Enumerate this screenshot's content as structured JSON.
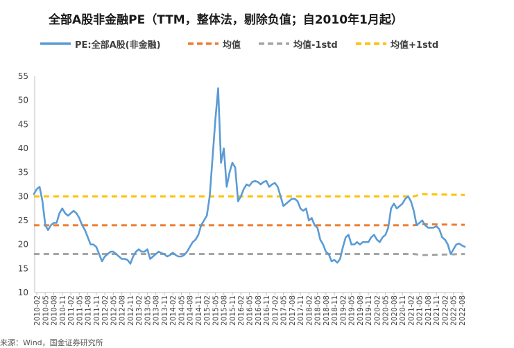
{
  "chart_data": {
    "type": "line",
    "title": "全部A股非金融PE（TTM，整体法，剔除负值；自2010年1月起）",
    "ylim": [
      10,
      55
    ],
    "yticks": [
      10,
      15,
      20,
      25,
      30,
      35,
      40,
      45,
      50,
      55
    ],
    "x_tick_labels": [
      "2010-02",
      "2010-05",
      "2010-08",
      "2010-11",
      "2011-02",
      "2011-05",
      "2011-08",
      "2011-11",
      "2012-02",
      "2012-05",
      "2012-08",
      "2012-11",
      "2013-02",
      "2013-05",
      "2013-08",
      "2013-11",
      "2014-02",
      "2014-05",
      "2014-08",
      "2014-11",
      "2015-02",
      "2015-05",
      "2015-08",
      "2015-11",
      "2016-02",
      "2016-05",
      "2016-08",
      "2016-11",
      "2017-02",
      "2017-05",
      "2017-08",
      "2017-11",
      "2018-02",
      "2018-05",
      "2018-08",
      "2018-11",
      "2019-02",
      "2019-05",
      "2019-08",
      "2019-11",
      "2020-02",
      "2020-05",
      "2020-08",
      "2020-11",
      "2021-02",
      "2021-05",
      "2021-08",
      "2021-11",
      "2022-02",
      "2022-05",
      "2022-08"
    ],
    "grid": false,
    "legend_position": "top",
    "series": [
      {
        "name": "PE:全部A股(非金融)",
        "style": "solid",
        "color": "#5b9bd5",
        "points": [
          [
            "2010-01",
            30.5
          ],
          [
            "2010-02",
            31.5
          ],
          [
            "2010-03",
            32
          ],
          [
            "2010-04",
            29
          ],
          [
            "2010-05",
            24
          ],
          [
            "2010-06",
            23
          ],
          [
            "2010-07",
            24
          ],
          [
            "2010-08",
            24.5
          ],
          [
            "2010-09",
            24.5
          ],
          [
            "2010-10",
            26.5
          ],
          [
            "2010-11",
            27.5
          ],
          [
            "2010-12",
            26.5
          ],
          [
            "2011-01",
            26
          ],
          [
            "2011-02",
            26.5
          ],
          [
            "2011-03",
            27
          ],
          [
            "2011-04",
            26.5
          ],
          [
            "2011-05",
            25.5
          ],
          [
            "2011-06",
            24
          ],
          [
            "2011-07",
            23
          ],
          [
            "2011-08",
            21.5
          ],
          [
            "2011-09",
            20
          ],
          [
            "2011-10",
            20
          ],
          [
            "2011-11",
            19.5
          ],
          [
            "2011-12",
            18
          ],
          [
            "2012-01",
            16.5
          ],
          [
            "2012-02",
            17.5
          ],
          [
            "2012-03",
            18
          ],
          [
            "2012-04",
            18.5
          ],
          [
            "2012-05",
            18.5
          ],
          [
            "2012-06",
            18
          ],
          [
            "2012-07",
            17.5
          ],
          [
            "2012-08",
            17
          ],
          [
            "2012-09",
            17
          ],
          [
            "2012-10",
            16.8
          ],
          [
            "2012-11",
            16
          ],
          [
            "2012-12",
            17.5
          ],
          [
            "2013-01",
            18.5
          ],
          [
            "2013-02",
            19
          ],
          [
            "2013-03",
            18.5
          ],
          [
            "2013-04",
            18.5
          ],
          [
            "2013-05",
            19
          ],
          [
            "2013-06",
            17
          ],
          [
            "2013-07",
            17.5
          ],
          [
            "2013-08",
            18
          ],
          [
            "2013-09",
            18.5
          ],
          [
            "2013-10",
            18.2
          ],
          [
            "2013-11",
            18
          ],
          [
            "2013-12",
            17.5
          ],
          [
            "2014-01",
            17.8
          ],
          [
            "2014-02",
            18.3
          ],
          [
            "2014-03",
            17.8
          ],
          [
            "2014-04",
            17.5
          ],
          [
            "2014-05",
            17.5
          ],
          [
            "2014-06",
            17.8
          ],
          [
            "2014-07",
            18.5
          ],
          [
            "2014-08",
            19.5
          ],
          [
            "2014-09",
            20.5
          ],
          [
            "2014-10",
            21
          ],
          [
            "2014-11",
            22
          ],
          [
            "2014-12",
            24
          ],
          [
            "2015-01",
            25
          ],
          [
            "2015-02",
            26
          ],
          [
            "2015-03",
            30
          ],
          [
            "2015-04",
            38
          ],
          [
            "2015-05",
            46
          ],
          [
            "2015-06",
            52.5
          ],
          [
            "2015-07",
            37
          ],
          [
            "2015-08",
            40
          ],
          [
            "2015-09",
            32
          ],
          [
            "2015-10",
            35
          ],
          [
            "2015-11",
            37
          ],
          [
            "2015-12",
            36
          ],
          [
            "2016-01",
            29
          ],
          [
            "2016-02",
            30
          ],
          [
            "2016-03",
            31.5
          ],
          [
            "2016-04",
            32.5
          ],
          [
            "2016-05",
            32.2
          ],
          [
            "2016-06",
            33
          ],
          [
            "2016-07",
            33.2
          ],
          [
            "2016-08",
            33
          ],
          [
            "2016-09",
            32.5
          ],
          [
            "2016-10",
            33
          ],
          [
            "2016-11",
            33.2
          ],
          [
            "2016-12",
            32
          ],
          [
            "2017-01",
            32.5
          ],
          [
            "2017-02",
            32.8
          ],
          [
            "2017-03",
            32
          ],
          [
            "2017-04",
            30
          ],
          [
            "2017-05",
            28
          ],
          [
            "2017-06",
            28.5
          ],
          [
            "2017-07",
            29
          ],
          [
            "2017-08",
            29.5
          ],
          [
            "2017-09",
            29.5
          ],
          [
            "2017-10",
            29
          ],
          [
            "2017-11",
            27.5
          ],
          [
            "2017-12",
            27
          ],
          [
            "2018-01",
            27.5
          ],
          [
            "2018-02",
            25
          ],
          [
            "2018-03",
            25.5
          ],
          [
            "2018-04",
            24
          ],
          [
            "2018-05",
            23.5
          ],
          [
            "2018-06",
            21
          ],
          [
            "2018-07",
            20
          ],
          [
            "2018-08",
            18.5
          ],
          [
            "2018-09",
            18
          ],
          [
            "2018-10",
            16.5
          ],
          [
            "2018-11",
            16.8
          ],
          [
            "2018-12",
            16.2
          ],
          [
            "2019-01",
            17
          ],
          [
            "2019-02",
            19.5
          ],
          [
            "2019-03",
            21.5
          ],
          [
            "2019-04",
            22
          ],
          [
            "2019-05",
            20
          ],
          [
            "2019-06",
            20
          ],
          [
            "2019-07",
            20.5
          ],
          [
            "2019-08",
            20
          ],
          [
            "2019-09",
            20.5
          ],
          [
            "2019-10",
            20.5
          ],
          [
            "2019-11",
            20.5
          ],
          [
            "2019-12",
            21.5
          ],
          [
            "2020-01",
            22
          ],
          [
            "2020-02",
            21
          ],
          [
            "2020-03",
            20.5
          ],
          [
            "2020-04",
            21.5
          ],
          [
            "2020-05",
            22
          ],
          [
            "2020-06",
            23.5
          ],
          [
            "2020-07",
            27.5
          ],
          [
            "2020-08",
            28.5
          ],
          [
            "2020-09",
            27.5
          ],
          [
            "2020-10",
            28
          ],
          [
            "2020-11",
            28.5
          ],
          [
            "2020-12",
            29.5
          ],
          [
            "2021-01",
            30
          ],
          [
            "2021-02",
            29
          ],
          [
            "2021-03",
            27
          ],
          [
            "2021-04",
            24
          ],
          [
            "2021-05",
            24.5
          ],
          [
            "2021-06",
            25
          ],
          [
            "2021-07",
            24
          ],
          [
            "2021-08",
            23.5
          ],
          [
            "2021-09",
            23.5
          ],
          [
            "2021-10",
            23.5
          ],
          [
            "2021-11",
            23.8
          ],
          [
            "2021-12",
            23.2
          ],
          [
            "2022-01",
            21.5
          ],
          [
            "2022-02",
            21
          ],
          [
            "2022-03",
            20
          ],
          [
            "2022-04",
            18
          ],
          [
            "2022-05",
            19
          ],
          [
            "2022-06",
            20
          ],
          [
            "2022-07",
            20.2
          ],
          [
            "2022-08",
            19.8
          ],
          [
            "2022-09",
            19.5
          ]
        ]
      },
      {
        "name": "均值",
        "style": "dashed",
        "color": "#ed7d31",
        "points": [
          [
            "2010-01",
            24
          ],
          [
            "2021-03",
            24
          ],
          [
            "2021-06",
            24.2
          ],
          [
            "2022-09",
            24.1
          ]
        ]
      },
      {
        "name": "均值-1std",
        "style": "dashed",
        "color": "#a5a5a5",
        "points": [
          [
            "2010-01",
            18
          ],
          [
            "2021-03",
            18
          ],
          [
            "2021-06",
            17.8
          ],
          [
            "2022-09",
            18
          ]
        ]
      },
      {
        "name": "均值+1std",
        "style": "dashed",
        "color": "#ffc000",
        "points": [
          [
            "2010-01",
            30
          ],
          [
            "2021-03",
            30
          ],
          [
            "2021-06",
            30.5
          ],
          [
            "2022-09",
            30.3
          ]
        ]
      }
    ]
  },
  "source_text": "来源：Wind，国金证券研究所"
}
